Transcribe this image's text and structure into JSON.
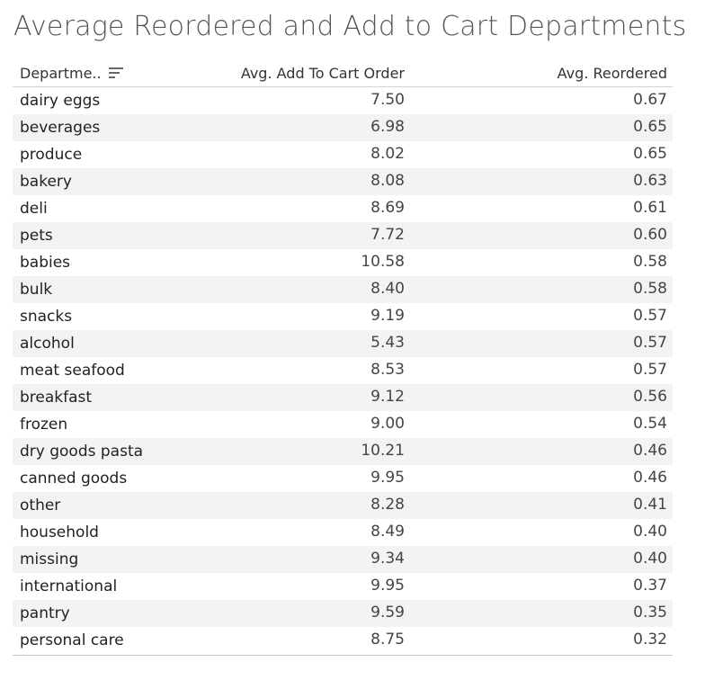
{
  "title": "Average Reordered and Add to Cart Departments",
  "columns": {
    "department": "Departme..",
    "add_to_cart": "Avg. Add To Cart Order",
    "reordered": "Avg. Reordered"
  },
  "chart_data": {
    "type": "table",
    "title": "Average Reordered and Add to Cart Departments",
    "columns": [
      "Departme..",
      "Avg. Add To Cart Order",
      "Avg. Reordered"
    ],
    "sort": "descending by Avg. Reordered",
    "rows": [
      {
        "department": "dairy eggs",
        "add_to_cart": "7.50",
        "reordered": "0.67"
      },
      {
        "department": "beverages",
        "add_to_cart": "6.98",
        "reordered": "0.65"
      },
      {
        "department": "produce",
        "add_to_cart": "8.02",
        "reordered": "0.65"
      },
      {
        "department": "bakery",
        "add_to_cart": "8.08",
        "reordered": "0.63"
      },
      {
        "department": "deli",
        "add_to_cart": "8.69",
        "reordered": "0.61"
      },
      {
        "department": "pets",
        "add_to_cart": "7.72",
        "reordered": "0.60"
      },
      {
        "department": "babies",
        "add_to_cart": "10.58",
        "reordered": "0.58"
      },
      {
        "department": "bulk",
        "add_to_cart": "8.40",
        "reordered": "0.58"
      },
      {
        "department": "snacks",
        "add_to_cart": "9.19",
        "reordered": "0.57"
      },
      {
        "department": "alcohol",
        "add_to_cart": "5.43",
        "reordered": "0.57"
      },
      {
        "department": "meat seafood",
        "add_to_cart": "8.53",
        "reordered": "0.57"
      },
      {
        "department": "breakfast",
        "add_to_cart": "9.12",
        "reordered": "0.56"
      },
      {
        "department": "frozen",
        "add_to_cart": "9.00",
        "reordered": "0.54"
      },
      {
        "department": "dry goods pasta",
        "add_to_cart": "10.21",
        "reordered": "0.46"
      },
      {
        "department": "canned goods",
        "add_to_cart": "9.95",
        "reordered": "0.46"
      },
      {
        "department": "other",
        "add_to_cart": "8.28",
        "reordered": "0.41"
      },
      {
        "department": "household",
        "add_to_cart": "8.49",
        "reordered": "0.40"
      },
      {
        "department": "missing",
        "add_to_cart": "9.34",
        "reordered": "0.40"
      },
      {
        "department": "international",
        "add_to_cart": "9.95",
        "reordered": "0.37"
      },
      {
        "department": "pantry",
        "add_to_cart": "9.59",
        "reordered": "0.35"
      },
      {
        "department": "personal care",
        "add_to_cart": "8.75",
        "reordered": "0.32"
      }
    ]
  },
  "colors": {
    "band": "#f3f3f3",
    "title": "#555555",
    "text": "#222222"
  },
  "icons": {
    "sort": "sort-descending-icon"
  }
}
